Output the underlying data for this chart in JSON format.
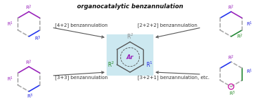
{
  "title": "organocatalytic benzannulation",
  "center_box_color": "#cce8f0",
  "labels": {
    "top_left": "[4+2] benzannulation",
    "top_right": "[2+2+2] benzannulation",
    "bot_left": "[3+3] benzannulation",
    "bot_right": "[3+2+1] benzannulation, etc."
  },
  "r_purple": "#9922bb",
  "r_blue": "#2222dd",
  "r_green": "#228822",
  "r_gray": "#999999",
  "bond_purple": "#9922bb",
  "bond_blue": "#2233ee",
  "bond_green": "#228833",
  "bond_gray": "#aaaaaa",
  "bond_magenta": "#cc22aa",
  "center_ar_color": "#9922bb",
  "center_r1_color": "#2222dd",
  "center_r2_color": "#888888",
  "center_r3_color": "#228822",
  "arrow_color": "#555555",
  "label_color": "#333333",
  "title_color": "#111111",
  "bg_color": "#ffffff"
}
